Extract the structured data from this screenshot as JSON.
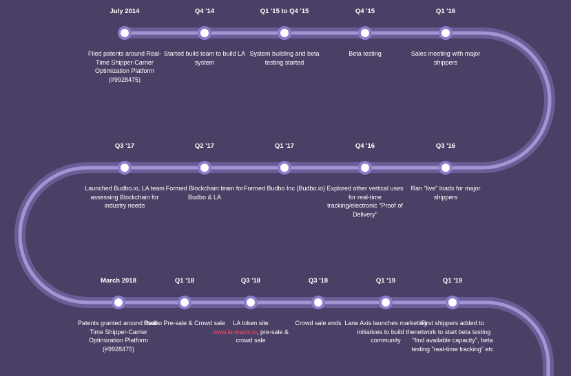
{
  "colors": {
    "background": "#4a3f64",
    "track_outer": "#6a5d95",
    "track_inner": "#a594d4",
    "node_ring": "#8a7ccb",
    "node_fill": "#ffffff",
    "link": "#ff4a63"
  },
  "rows": [
    {
      "milestones": [
        {
          "date": "July 2014",
          "description": "Filed patents around Real-Time Shipper-Carrier Optimization Platform (#9928475)"
        },
        {
          "date": "Q4 '14",
          "description": "Started build team to build LA system"
        },
        {
          "date": "Q1 '15 to Q4 '15",
          "description": "System building and beta testing started"
        },
        {
          "date": "Q4 '15",
          "description": "Beta testing"
        },
        {
          "date": "Q1 '16",
          "description": "Sales meeting with major shippers"
        }
      ]
    },
    {
      "milestones": [
        {
          "date": "Q3 '17",
          "description": "Launched Budbo.io, LA team assessing Blockchain for industry needs"
        },
        {
          "date": "Q2 '17",
          "description": "Formed Blockchain team for Budbo & LA"
        },
        {
          "date": "Q1 '17",
          "description": "Formed Budbo Inc (Budbo.io)"
        },
        {
          "date": "Q4 '16",
          "description": "Explored other vertical uses for real-time tracking/electronic \"Proof of Delivery\""
        },
        {
          "date": "Q3 '16",
          "description": "Ran \"live\" loads for major shippers"
        }
      ]
    },
    {
      "milestones": [
        {
          "date": "March 2018",
          "description": "Patents granted around Real-Time Shipper-Carrier Optimization Platform (#9928475)"
        },
        {
          "date": "Q1 '18",
          "description": "Budbo Pre-sale & Crowd sale"
        },
        {
          "date": "Q3 '18",
          "description_before": "LA token site ",
          "link": "www.laneaxis.io",
          "description_after": ", pre-sale & crowd sale"
        },
        {
          "date": "Q3 '18",
          "description": "Crowd sale ends"
        },
        {
          "date": "Q1 '19",
          "description": "Lane Axis launches marketing initiatives to build the community"
        },
        {
          "date": "Q1 '19",
          "description": "First shippers added to network to start beta testing \"find available capacity\", beta testing \"real-time tracking\" etc"
        }
      ]
    }
  ]
}
